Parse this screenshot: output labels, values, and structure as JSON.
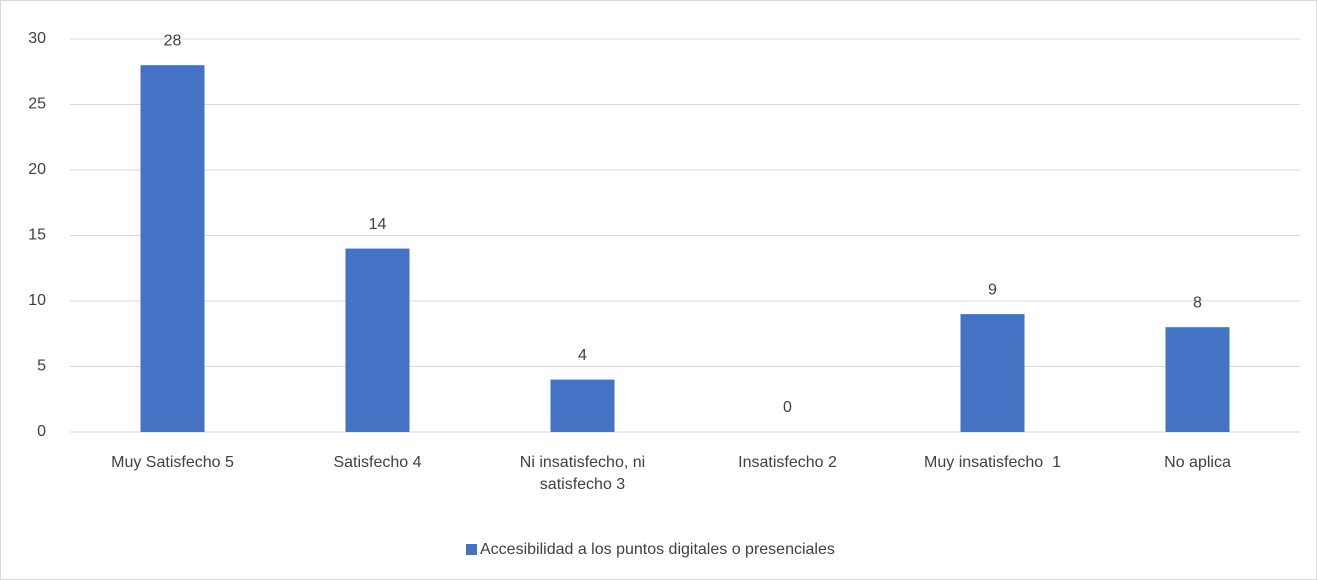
{
  "chart_data": {
    "type": "bar",
    "categories": [
      "Muy Satisfecho 5",
      "Satisfecho 4",
      "Ni insatisfecho, ni satisfecho 3",
      "Insatisfecho 2",
      "Muy insatisfecho  1",
      "No aplica"
    ],
    "series": [
      {
        "name": "Accesibilidad a los puntos digitales o presenciales",
        "color": "#4472c4",
        "values": [
          28,
          14,
          4,
          0,
          9,
          8
        ]
      }
    ],
    "ylim": [
      0,
      30
    ],
    "yticks": [
      0,
      5,
      10,
      15,
      20,
      25,
      30
    ],
    "grid": true,
    "legend": "bottom"
  }
}
